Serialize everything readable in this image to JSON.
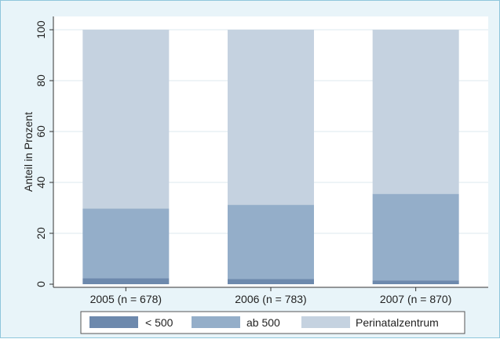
{
  "chart_data": {
    "type": "bar",
    "stacked": true,
    "categories": [
      "2005 (n = 678)",
      "2006 (n = 783)",
      "2007 (n = 870)"
    ],
    "series": [
      {
        "name": "< 500",
        "values": [
          2.3,
          2.0,
          1.5
        ],
        "color": "#6d89ad"
      },
      {
        "name": "ab 500",
        "values": [
          27.4,
          29.2,
          34.0
        ],
        "color": "#94aec9"
      },
      {
        "name": "Perinatalzentrum",
        "values": [
          70.3,
          68.8,
          64.5
        ],
        "color": "#c5d2e0"
      }
    ],
    "title": "",
    "xlabel": "",
    "ylabel": "Anteil in Prozent",
    "ylim": [
      0,
      100
    ],
    "yticks": [
      0,
      20,
      40,
      60,
      80,
      100
    ],
    "grid": true,
    "legend_position": "bottom",
    "colors": {
      "background": "#e8f4f9",
      "plot_background": "#ffffff",
      "grid": "#dde8ef",
      "frame_border": "#8fc6dc"
    }
  }
}
